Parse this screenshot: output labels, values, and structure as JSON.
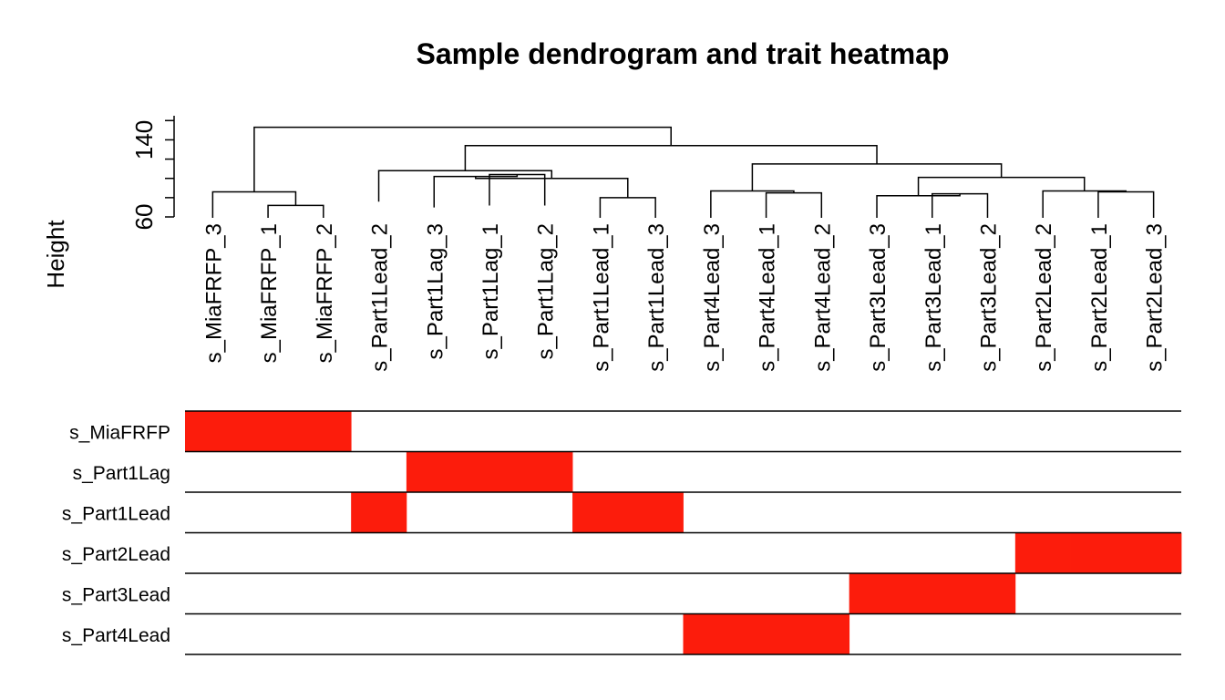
{
  "chart_data": {
    "type": "dendrogram-heatmap",
    "title": "Sample dendrogram and trait heatmap",
    "ylabel": "Height",
    "yticks": [
      60,
      140
    ],
    "ylim": [
      60,
      165
    ],
    "samples": [
      "s_MiaFRFP_3",
      "s_MiaFRFP_1",
      "s_MiaFRFP_2",
      "s_Part1Lead_2",
      "s_Part1Lag_3",
      "s_Part1Lag_1",
      "s_Part1Lag_2",
      "s_Part1Lead_1",
      "s_Part1Lead_3",
      "s_Part4Lead_3",
      "s_Part4Lead_1",
      "s_Part4Lead_2",
      "s_Part3Lead_3",
      "s_Part3Lead_1",
      "s_Part3Lead_2",
      "s_Part2Lead_2",
      "s_Part2Lead_1",
      "s_Part2Lead_3"
    ],
    "merges": [
      {
        "a": 1,
        "b": 2,
        "height": 72
      },
      {
        "a": 0,
        "b": -1,
        "height": 86
      },
      {
        "a": 7,
        "b": 8,
        "height": 80
      },
      {
        "a": 5,
        "b": 6,
        "height": 104
      },
      {
        "a": 4,
        "b": -4,
        "height": 102
      },
      {
        "a": -5,
        "b": -3,
        "height": 100
      },
      {
        "a": -6,
        "b": 3,
        "height": 108
      },
      {
        "a": 10,
        "b": 11,
        "height": 85
      },
      {
        "a": 9,
        "b": -8,
        "height": 87
      },
      {
        "a": 13,
        "b": 14,
        "height": 84
      },
      {
        "a": 12,
        "b": -10,
        "height": 82
      },
      {
        "a": 16,
        "b": 17,
        "height": 86
      },
      {
        "a": 15,
        "b": -12,
        "height": 87
      },
      {
        "a": -11,
        "b": -13,
        "height": 101
      },
      {
        "a": -9,
        "b": -14,
        "height": 115
      },
      {
        "a": -7,
        "b": -15,
        "height": 134
      },
      {
        "a": -2,
        "b": -16,
        "height": 153
      }
    ],
    "traits": [
      "s_MiaFRFP",
      "s_Part1Lag",
      "s_Part1Lead",
      "s_Part2Lead",
      "s_Part3Lead",
      "s_Part4Lead"
    ],
    "matrix": [
      [
        1,
        1,
        1,
        0,
        0,
        0,
        0,
        0,
        0,
        0,
        0,
        0,
        0,
        0,
        0,
        0,
        0,
        0
      ],
      [
        0,
        0,
        0,
        0,
        1,
        1,
        1,
        0,
        0,
        0,
        0,
        0,
        0,
        0,
        0,
        0,
        0,
        0
      ],
      [
        0,
        0,
        0,
        1,
        0,
        0,
        0,
        1,
        1,
        0,
        0,
        0,
        0,
        0,
        0,
        0,
        0,
        0
      ],
      [
        0,
        0,
        0,
        0,
        0,
        0,
        0,
        0,
        0,
        0,
        0,
        0,
        0,
        0,
        0,
        1,
        1,
        1
      ],
      [
        0,
        0,
        0,
        0,
        0,
        0,
        0,
        0,
        0,
        0,
        0,
        0,
        1,
        1,
        1,
        0,
        0,
        0
      ],
      [
        0,
        0,
        0,
        0,
        0,
        0,
        0,
        0,
        0,
        1,
        1,
        1,
        0,
        0,
        0,
        0,
        0,
        0
      ]
    ],
    "colors": {
      "on": "#fc1c0c",
      "off": "#ffffff",
      "line": "#000000"
    }
  }
}
